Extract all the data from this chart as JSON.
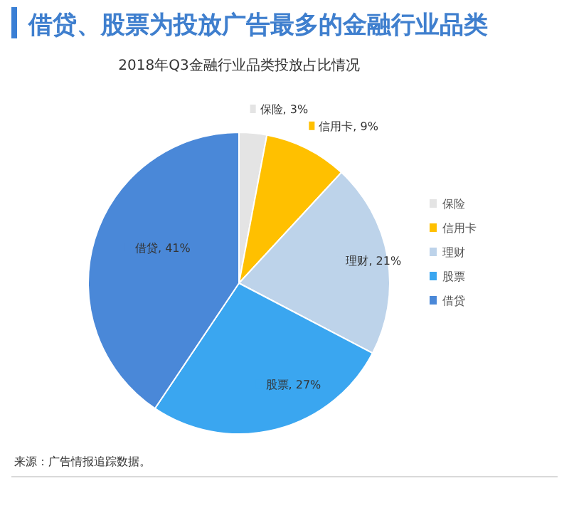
{
  "chart_data": {
    "type": "pie",
    "title": "借贷、股票为投放广告最多的金融行业品类",
    "subtitle": "2018年Q3金融行业品类投放占比情况",
    "categories": [
      "保险",
      "信用卡",
      "理财",
      "股票",
      "借贷"
    ],
    "values": [
      3,
      9,
      21,
      27,
      41
    ],
    "value_labels": [
      "保险, 3%",
      "信用卡, 9%",
      "理财, 21%",
      "股票, 27%",
      "借贷, 41%"
    ],
    "colors": [
      "#e4e4e4",
      "#ffc000",
      "#bdd3ea",
      "#3aa6f0",
      "#4a88d8"
    ],
    "legend": "right",
    "annotations": [
      "来源：广告情报追踪数据。"
    ]
  }
}
